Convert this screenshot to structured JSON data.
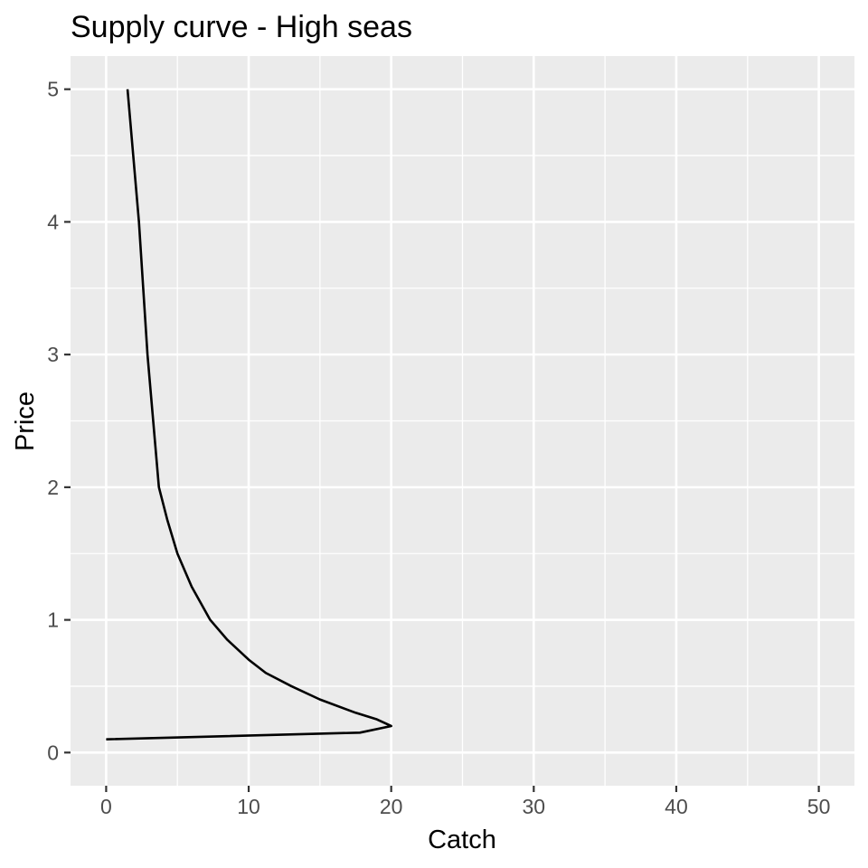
{
  "chart_data": {
    "type": "line",
    "title": "Supply curve - High seas",
    "xlabel": "Catch",
    "ylabel": "Price",
    "xlim": [
      -2.5,
      52.5
    ],
    "ylim": [
      -0.25,
      5.25
    ],
    "x_ticks": [
      0,
      10,
      20,
      30,
      40,
      50
    ],
    "y_ticks": [
      0,
      1,
      2,
      3,
      4,
      5
    ],
    "x_tick_labels": [
      "0",
      "10",
      "20",
      "30",
      "40",
      "50"
    ],
    "y_tick_labels": [
      "0",
      "1",
      "2",
      "3",
      "4",
      "5"
    ],
    "x_minor": [
      5,
      15,
      25,
      35,
      45
    ],
    "y_minor": [
      0.5,
      1.5,
      2.5,
      3.5,
      4.5
    ],
    "grid": true,
    "background": "#ebebeb",
    "line_color": "#000000",
    "series": [
      {
        "name": "Supply",
        "points": [
          [
            0,
            0.1
          ],
          [
            17.8,
            0.15
          ],
          [
            20.0,
            0.2
          ],
          [
            19.0,
            0.25
          ],
          [
            17.5,
            0.3
          ],
          [
            15.0,
            0.4
          ],
          [
            13.0,
            0.5
          ],
          [
            11.2,
            0.6
          ],
          [
            10.0,
            0.7
          ],
          [
            8.5,
            0.85
          ],
          [
            7.3,
            1.0
          ],
          [
            6.0,
            1.25
          ],
          [
            5.0,
            1.5
          ],
          [
            4.3,
            1.75
          ],
          [
            3.7,
            2.0
          ],
          [
            3.3,
            2.5
          ],
          [
            2.9,
            3.0
          ],
          [
            2.6,
            3.5
          ],
          [
            2.3,
            4.0
          ],
          [
            1.9,
            4.5
          ],
          [
            1.5,
            5.0
          ]
        ]
      }
    ]
  }
}
